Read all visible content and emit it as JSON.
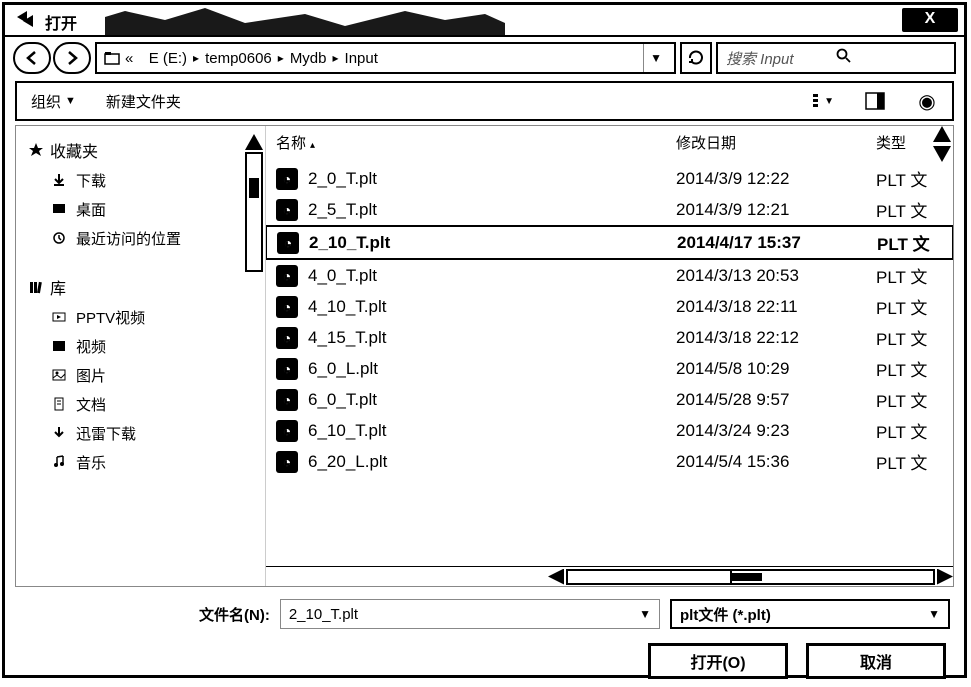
{
  "window": {
    "title": "打开",
    "close_symbol": "X"
  },
  "breadcrumb": {
    "prefix": "«",
    "items": [
      "E (E:)",
      "temp0606",
      "Mydb",
      "Input"
    ],
    "separator": "▸"
  },
  "search": {
    "placeholder": "搜索 Input"
  },
  "toolbar": {
    "organize": "组织",
    "new_folder": "新建文件夹"
  },
  "sidebar": {
    "favorites": {
      "header": "收藏夹",
      "items": [
        "下载",
        "桌面",
        "最近访问的位置"
      ]
    },
    "libraries": {
      "header": "库",
      "items": [
        "PPTV视频",
        "视频",
        "图片",
        "文档",
        "迅雷下载",
        "音乐"
      ]
    }
  },
  "filelist": {
    "columns": {
      "name": "名称",
      "date": "修改日期",
      "type": "类型"
    },
    "type_label": "PLT 文",
    "rows": [
      {
        "name": "2_0_T.plt",
        "date": "2014/3/9 12:22",
        "selected": false
      },
      {
        "name": "2_5_T.plt",
        "date": "2014/3/9 12:21",
        "selected": false
      },
      {
        "name": "2_10_T.plt",
        "date": "2014/4/17 15:37",
        "selected": true
      },
      {
        "name": "4_0_T.plt",
        "date": "2014/3/13 20:53",
        "selected": false
      },
      {
        "name": "4_10_T.plt",
        "date": "2014/3/18 22:11",
        "selected": false
      },
      {
        "name": "4_15_T.plt",
        "date": "2014/3/18 22:12",
        "selected": false
      },
      {
        "name": "6_0_L.plt",
        "date": "2014/5/8 10:29",
        "selected": false
      },
      {
        "name": "6_0_T.plt",
        "date": "2014/5/28 9:57",
        "selected": false
      },
      {
        "name": "6_10_T.plt",
        "date": "2014/3/24 9:23",
        "selected": false
      },
      {
        "name": "6_20_L.plt",
        "date": "2014/5/4 15:36",
        "selected": false
      }
    ]
  },
  "filename": {
    "label": "文件名(N):",
    "value": "2_10_T.plt"
  },
  "filter": {
    "value": "plt文件 (*.plt)"
  },
  "buttons": {
    "open": "打开(O)",
    "cancel": "取消"
  },
  "icons": {
    "file_glyph": "◔",
    "dropdown": "▼",
    "help_glyph": "◉"
  }
}
